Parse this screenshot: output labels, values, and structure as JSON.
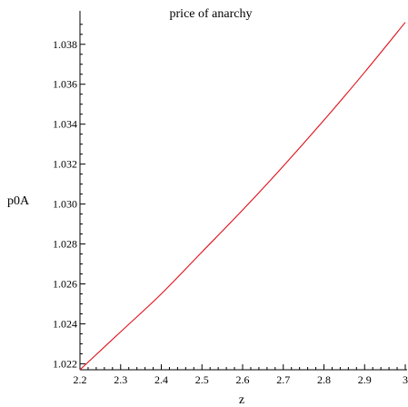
{
  "chart_data": {
    "type": "line",
    "title": "price of anarchy",
    "xlabel": "z",
    "ylabel": "p0A",
    "xlim": [
      2.2,
      3.0
    ],
    "ylim": [
      1.0217,
      1.0394
    ],
    "x_ticks": [
      2.2,
      2.3,
      2.4,
      2.5,
      2.6,
      2.7,
      2.8,
      2.9,
      3
    ],
    "x_tick_labels": [
      "2.2",
      "2.3",
      "2.4",
      "2.5",
      "2.6",
      "2.7",
      "2.8",
      "2.9",
      "3"
    ],
    "y_ticks": [
      1.022,
      1.024,
      1.026,
      1.028,
      1.03,
      1.032,
      1.034,
      1.036,
      1.038
    ],
    "y_tick_labels": [
      "1.022",
      "1.024",
      "1.026",
      "1.028",
      "1.030",
      "1.032",
      "1.034",
      "1.036",
      "1.038"
    ],
    "grid": false,
    "series": [
      {
        "color": "#e0101a",
        "x": [
          2.2,
          2.3,
          2.4,
          2.5,
          2.6,
          2.7,
          2.8,
          2.9,
          3.0
        ],
        "y": [
          1.0217,
          1.0236,
          1.0255,
          1.0276,
          1.0297,
          1.0319,
          1.0342,
          1.0366,
          1.0391
        ]
      }
    ]
  }
}
